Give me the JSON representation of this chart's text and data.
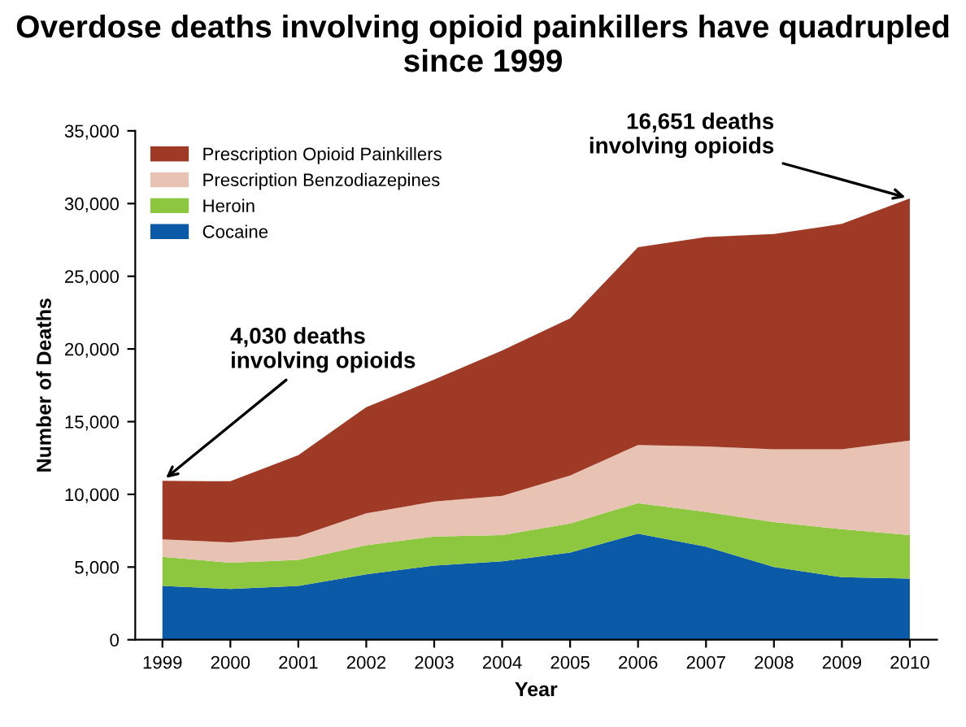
{
  "chart_data": {
    "type": "area",
    "stacked": true,
    "title": "Overdose deaths involving opioid painkillers have quadrupled since 1999",
    "xlabel": "Year",
    "ylabel": "Number of Deaths",
    "categories": [
      "1999",
      "2000",
      "2001",
      "2002",
      "2003",
      "2004",
      "2005",
      "2006",
      "2007",
      "2008",
      "2009",
      "2010"
    ],
    "series": [
      {
        "name": "Cocaine",
        "color": "#0a5aa8",
        "values": [
          3700,
          3500,
          3700,
          4500,
          5100,
          5400,
          6000,
          7300,
          6400,
          5000,
          4300,
          4200
        ]
      },
      {
        "name": "Heroin",
        "color": "#8dc63f",
        "values": [
          2000,
          1800,
          1800,
          2000,
          2000,
          1800,
          2000,
          2100,
          2400,
          3100,
          3300,
          3000
        ]
      },
      {
        "name": "Prescription Benzodiazepines",
        "color": "#e8c3b4",
        "values": [
          1200,
          1400,
          1600,
          2200,
          2400,
          2700,
          3300,
          4000,
          4500,
          5000,
          5500,
          6500
        ]
      },
      {
        "name": "Prescription Opioid Painkillers",
        "color": "#9e3a26",
        "values": [
          4030,
          4200,
          5600,
          7300,
          8400,
          10000,
          10800,
          13600,
          14400,
          14800,
          15500,
          16651
        ]
      }
    ],
    "ylim": [
      0,
      35000
    ],
    "yticks": [
      0,
      {
        "value": 5000,
        "label": "5,000"
      },
      {
        "value": 10000,
        "label": "10,000"
      },
      {
        "value": 15000,
        "label": "15,000"
      },
      {
        "value": 20000,
        "label": "20,000"
      },
      {
        "value": 25000,
        "label": "25,000"
      },
      {
        "value": 30000,
        "label": "30,000"
      },
      {
        "value": 35000,
        "label": "35,000"
      }
    ],
    "grid": false,
    "legend": "top left",
    "annotations": [
      {
        "text": "4,030 deaths\ninvolving opioids",
        "x": "1999",
        "y": 10930
      },
      {
        "text": "16,651 deaths\ninvolving opioids",
        "x": "2010",
        "y": 30351
      }
    ]
  }
}
